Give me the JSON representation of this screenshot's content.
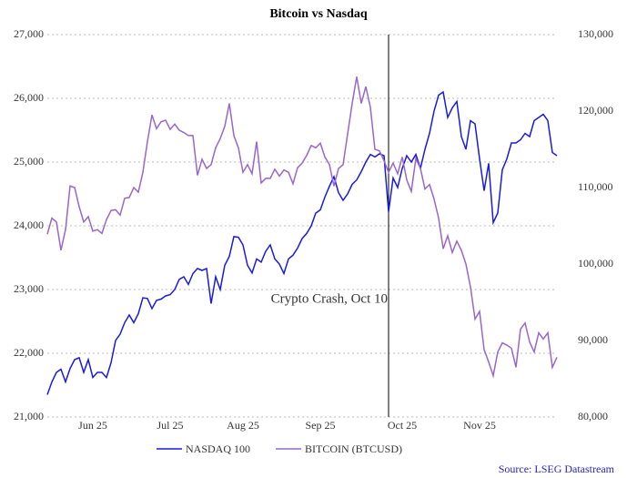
{
  "chart_data": {
    "type": "line",
    "title": "Bitcoin vs Nasdaq",
    "categories": [
      null,
      null,
      null,
      null,
      null,
      null,
      null,
      null,
      null,
      null,
      "Jun 25",
      null,
      null,
      null,
      null,
      null,
      null,
      null,
      null,
      null,
      null,
      null,
      null,
      null,
      null,
      null,
      null,
      "Jul 25",
      null,
      null,
      null,
      null,
      null,
      null,
      null,
      null,
      null,
      null,
      null,
      null,
      null,
      null,
      null,
      "Aug 25",
      null,
      null,
      null,
      null,
      null,
      null,
      null,
      null,
      null,
      null,
      null,
      null,
      null,
      null,
      null,
      null,
      "Sep 25",
      null,
      null,
      null,
      null,
      null,
      null,
      null,
      null,
      null,
      null,
      null,
      null,
      null,
      null,
      null,
      null,
      null,
      "Oct 25",
      null,
      null,
      null,
      null,
      null,
      null,
      null,
      null,
      null,
      null,
      null,
      null,
      null,
      null,
      null,
      null,
      "Nov 25",
      null,
      null,
      null,
      null,
      null,
      null,
      null,
      null,
      null,
      null,
      null,
      null,
      null,
      null,
      null,
      null,
      null
    ],
    "series": [
      {
        "name": "NASDAQ 100",
        "color": "#1a1ae0",
        "values": [
          21350,
          21550,
          21700,
          21750,
          21550,
          21760,
          21900,
          21930,
          21700,
          21900,
          21620,
          21700,
          21700,
          21620,
          21850,
          22200,
          22300,
          22480,
          22600,
          22480,
          22620,
          22870,
          22860,
          22700,
          22830,
          22850,
          22900,
          22920,
          23000,
          23160,
          23200,
          23080,
          23250,
          23330,
          23300,
          23330,
          22780,
          23200,
          23000,
          23380,
          23520,
          23830,
          23820,
          23700,
          23380,
          23260,
          23480,
          23430,
          23600,
          23700,
          23480,
          23400,
          23250,
          23480,
          23540,
          23650,
          23800,
          23880,
          24000,
          24200,
          24250,
          24450,
          24620,
          24770,
          24520,
          24400,
          24500,
          24650,
          24720,
          24850,
          25000,
          25120,
          25080,
          25130,
          25100,
          24220,
          24750,
          24600,
          24900,
          25100,
          25000,
          25120,
          24900,
          25200,
          25450,
          25800,
          26050,
          26100,
          25700,
          25850,
          25950,
          25400,
          25200,
          25650,
          25600,
          25050,
          24550,
          24980,
          24050,
          24200,
          24880,
          25050,
          25300,
          25300,
          25350,
          25450,
          25400,
          25650,
          25700,
          25750,
          25650,
          25150,
          25100
        ]
      },
      {
        "name": "BITCOIN (BTCUSD)",
        "color": "#9966cc",
        "axis": "y2",
        "values": [
          103900,
          106000,
          105500,
          101800,
          104500,
          110200,
          110000,
          107500,
          105500,
          106200,
          104300,
          104500,
          104000,
          105800,
          107000,
          107100,
          106400,
          108600,
          108700,
          110000,
          109400,
          112000,
          116000,
          119500,
          117700,
          118600,
          118800,
          117600,
          118300,
          117500,
          117200,
          116800,
          116800,
          111600,
          113700,
          112500,
          113000,
          115200,
          116400,
          118000,
          121000,
          116800,
          115200,
          112000,
          113000,
          111800,
          116000,
          110600,
          111200,
          111200,
          112400,
          111500,
          112300,
          112000,
          110500,
          112600,
          113200,
          114200,
          115500,
          115200,
          115800,
          114000,
          113000,
          110200,
          112500,
          113000,
          117000,
          121000,
          124500,
          121000,
          123200,
          120500,
          115000,
          114800,
          113500,
          112000,
          113200,
          111800,
          114000,
          111000,
          109500,
          113800,
          112500,
          109800,
          110400,
          108500,
          106000,
          102000,
          103700,
          101500,
          103000,
          101800,
          100000,
          97000,
          92800,
          93800,
          88800,
          87200,
          85400,
          88500,
          89700,
          89400,
          89000,
          86500,
          91500,
          92300,
          89800,
          88500,
          91000,
          90200,
          91000,
          86500,
          87800
        ]
      }
    ],
    "ylim": [
      21000,
      27000
    ],
    "yticks": [
      {
        "value": 21000,
        "label": "21,000"
      },
      {
        "value": 22000,
        "label": "22,000"
      },
      {
        "value": 23000,
        "label": "23,000"
      },
      {
        "value": 24000,
        "label": "24,000"
      },
      {
        "value": 25000,
        "label": "25,000"
      },
      {
        "value": 26000,
        "label": "26,000"
      },
      {
        "value": 27000,
        "label": "27,000"
      }
    ],
    "y2lim": [
      80000,
      130000
    ],
    "y2ticks": [
      {
        "value": 80000,
        "label": "80,000"
      },
      {
        "value": 90000,
        "label": "90,000"
      },
      {
        "value": 100000,
        "label": "100,000"
      },
      {
        "value": 110000,
        "label": "110,000"
      },
      {
        "value": 120000,
        "label": "120,000"
      },
      {
        "value": 130000,
        "label": "130,000"
      }
    ],
    "grid": true,
    "annotation": "Crypto Crash, Oct 10",
    "source": "Source: LSEG Datastream"
  }
}
